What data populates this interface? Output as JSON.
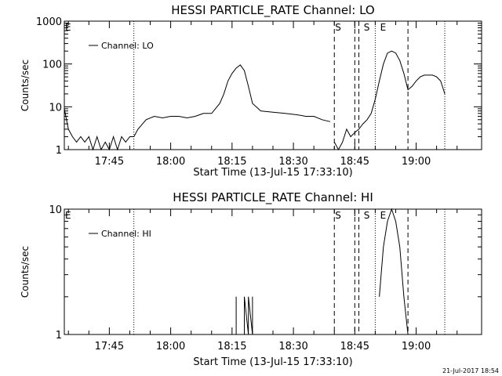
{
  "footer": {
    "timestamp": "21-Jul-2017 18:54"
  },
  "colors": {
    "background": "#ffffff",
    "ink": "#000000"
  },
  "chart_data": [
    {
      "type": "line",
      "title": "HESSI PARTICLE_RATE Channel: LO",
      "xlabel": "Start Time (13-Jul-15 17:33:10)",
      "ylabel": "Counts/sec",
      "yscale": "log",
      "ylim": [
        1,
        1000
      ],
      "xlim": [
        "17:34",
        "19:16"
      ],
      "yticks": [
        {
          "value": 1,
          "label": "1"
        },
        {
          "value": 10,
          "label": "10"
        },
        {
          "value": 100,
          "label": "100"
        },
        {
          "value": 1000,
          "label": "1000"
        }
      ],
      "xticks": [
        "17:45",
        "18:00",
        "18:15",
        "18:30",
        "18:45",
        "19:00"
      ],
      "legend": {
        "entry": "Channel: LO",
        "placement": "top-left"
      },
      "dashed_lines": [
        "18:40",
        "18:45",
        "18:46",
        "18:58"
      ],
      "dotted_lines": [
        "17:51",
        "18:50",
        "19:07"
      ],
      "markers": [
        {
          "label": "E",
          "time": "17:34"
        },
        {
          "label": "S",
          "time": "18:40"
        },
        {
          "label": "S",
          "time": "18:47"
        },
        {
          "label": "E",
          "time": "18:51"
        }
      ],
      "series": [
        {
          "name": "Channel: LO",
          "segments": [
            {
              "x": [
                "17:34",
                "17:35",
                "17:36",
                "17:37",
                "17:38",
                "17:39",
                "17:40",
                "17:41",
                "17:42",
                "17:43",
                "17:44",
                "17:45",
                "17:46",
                "17:47",
                "17:48",
                "17:49",
                "17:50",
                "17:51",
                "17:52",
                "17:54",
                "17:56",
                "17:58",
                "18:00",
                "18:02",
                "18:04",
                "18:06",
                "18:08",
                "18:10",
                "18:12",
                "18:13",
                "18:14",
                "18:15",
                "18:16",
                "18:17",
                "18:18",
                "18:19",
                "18:20",
                "18:22",
                "18:25",
                "18:28",
                "18:31",
                "18:33",
                "18:35",
                "18:37",
                "18:39"
              ],
              "y": [
                9,
                3,
                2,
                1.5,
                2,
                1.5,
                2,
                1,
                2,
                1,
                1.5,
                1,
                2,
                1,
                2,
                1.5,
                2,
                2,
                3,
                5,
                6,
                5.5,
                6,
                6,
                5.5,
                6,
                7,
                7,
                12,
                20,
                40,
                60,
                80,
                95,
                70,
                30,
                12,
                8,
                7.5,
                7,
                6.5,
                6,
                6,
                5,
                4.5
              ]
            },
            {
              "x": [
                "18:40",
                "18:41",
                "18:42",
                "18:43",
                "18:44",
                "18:45",
                "18:46",
                "18:47",
                "18:48",
                "18:49",
                "18:50",
                "18:51",
                "18:52",
                "18:53",
                "18:54",
                "18:55",
                "18:56",
                "18:57",
                "18:58",
                "18:59",
                "19:00",
                "19:01",
                "19:02",
                "19:03",
                "19:04",
                "19:05",
                "19:06",
                "19:07"
              ],
              "y": [
                1.5,
                1,
                1.5,
                3,
                2,
                2.5,
                3,
                4,
                5,
                7,
                15,
                40,
                100,
                180,
                200,
                180,
                120,
                60,
                25,
                30,
                40,
                50,
                55,
                55,
                55,
                50,
                40,
                20
              ]
            }
          ]
        }
      ]
    },
    {
      "type": "line",
      "title": "HESSI PARTICLE_RATE Channel: HI",
      "xlabel": "Start Time (13-Jul-15 17:33:10)",
      "ylabel": "Counts/sec",
      "yscale": "log",
      "ylim": [
        1,
        10
      ],
      "xlim": [
        "17:34",
        "19:16"
      ],
      "yticks": [
        {
          "value": 1,
          "label": "1"
        },
        {
          "value": 10,
          "label": "10"
        }
      ],
      "xticks": [
        "17:45",
        "18:00",
        "18:15",
        "18:30",
        "18:45",
        "19:00"
      ],
      "legend": {
        "entry": "Channel: HI",
        "placement": "top-left"
      },
      "dashed_lines": [
        "18:40",
        "18:45",
        "18:46",
        "18:58"
      ],
      "dotted_lines": [
        "17:51",
        "18:50",
        "19:07"
      ],
      "markers": [
        {
          "label": "E",
          "time": "17:34"
        },
        {
          "label": "S",
          "time": "18:40"
        },
        {
          "label": "S",
          "time": "18:47"
        },
        {
          "label": "E",
          "time": "18:51"
        }
      ],
      "series": [
        {
          "name": "Channel: HI",
          "segments": [
            {
              "x": [
                "18:16",
                "18:16",
                "18:16"
              ],
              "y": [
                1,
                2,
                1
              ]
            },
            {
              "x": [
                "18:18",
                "18:18",
                "18:19",
                "18:19",
                "18:19",
                "18:19",
                "18:20",
                "18:20"
              ],
              "y": [
                1,
                2,
                1,
                2,
                1,
                2,
                1,
                2
              ]
            },
            {
              "x": [
                "18:51",
                "18:52",
                "18:53",
                "18:54",
                "18:55",
                "18:56",
                "18:57",
                "18:58"
              ],
              "y": [
                2,
                5,
                8,
                10,
                8,
                5,
                2,
                1
              ]
            }
          ]
        }
      ]
    }
  ]
}
